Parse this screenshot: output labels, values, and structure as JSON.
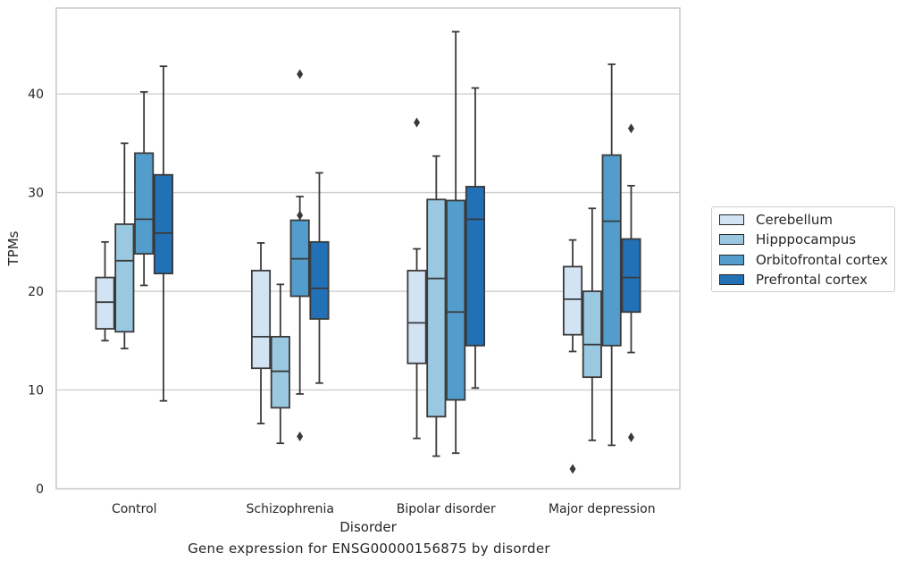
{
  "caption": "Gene expression for ENSG00000156875 by disorder",
  "chart_data": {
    "type": "box",
    "xlabel": "Disorder",
    "ylabel": "TPMs",
    "ylim": [
      0,
      48.7
    ],
    "yticks": [
      0,
      10,
      20,
      30,
      40
    ],
    "grid": "horizontal",
    "legend_position": "right",
    "categories": [
      "Control",
      "Schizophrenia",
      "Bipolar disorder",
      "Major depression"
    ],
    "series": [
      {
        "name": "Cerebellum",
        "color": "#d2e3f3",
        "boxes": [
          {
            "whislo": 15.0,
            "q1": 16.2,
            "med": 18.9,
            "q3": 21.4,
            "whishi": 25.0,
            "fliers": []
          },
          {
            "whislo": 6.6,
            "q1": 12.2,
            "med": 15.4,
            "q3": 22.1,
            "whishi": 24.9,
            "fliers": []
          },
          {
            "whislo": 5.1,
            "q1": 12.7,
            "med": 16.8,
            "q3": 22.1,
            "whishi": 24.3,
            "fliers": [
              37.1
            ]
          },
          {
            "whislo": 13.9,
            "q1": 15.6,
            "med": 19.2,
            "q3": 22.5,
            "whishi": 25.2,
            "fliers": [
              2.0
            ]
          }
        ]
      },
      {
        "name": "Hipppocampus",
        "color": "#9ac8e0",
        "boxes": [
          {
            "whislo": 14.2,
            "q1": 15.9,
            "med": 23.1,
            "q3": 26.8,
            "whishi": 35.0,
            "fliers": []
          },
          {
            "whislo": 4.6,
            "q1": 8.2,
            "med": 11.9,
            "q3": 15.4,
            "whishi": 20.7,
            "fliers": []
          },
          {
            "whislo": 3.3,
            "q1": 7.3,
            "med": 21.3,
            "q3": 29.3,
            "whishi": 33.7,
            "fliers": []
          },
          {
            "whislo": 4.9,
            "q1": 11.3,
            "med": 14.6,
            "q3": 20.0,
            "whishi": 28.4,
            "fliers": []
          }
        ]
      },
      {
        "name": "Orbitofrontal cortex",
        "color": "#529dcc",
        "boxes": [
          {
            "whislo": 20.6,
            "q1": 23.8,
            "med": 27.3,
            "q3": 34.0,
            "whishi": 40.2,
            "fliers": []
          },
          {
            "whislo": 9.6,
            "q1": 19.5,
            "med": 23.3,
            "q3": 27.2,
            "whishi": 29.6,
            "fliers": [
              27.7,
              42.0,
              5.3
            ]
          },
          {
            "whislo": 3.6,
            "q1": 9.0,
            "med": 17.9,
            "q3": 29.2,
            "whishi": 46.3,
            "fliers": []
          },
          {
            "whislo": 4.4,
            "q1": 14.5,
            "med": 27.1,
            "q3": 33.8,
            "whishi": 43.0,
            "fliers": []
          }
        ]
      },
      {
        "name": "Prefrontal cortex",
        "color": "#2270b5",
        "boxes": [
          {
            "whislo": 8.9,
            "q1": 21.8,
            "med": 25.9,
            "q3": 31.8,
            "whishi": 42.8,
            "fliers": []
          },
          {
            "whislo": 10.7,
            "q1": 17.2,
            "med": 20.3,
            "q3": 25.0,
            "whishi": 32.0,
            "fliers": []
          },
          {
            "whislo": 10.2,
            "q1": 14.5,
            "med": 27.3,
            "q3": 30.6,
            "whishi": 40.6,
            "fliers": []
          },
          {
            "whislo": 13.8,
            "q1": 17.9,
            "med": 21.4,
            "q3": 25.3,
            "whishi": 30.7,
            "fliers": [
              36.5,
              5.2
            ]
          }
        ]
      }
    ]
  }
}
